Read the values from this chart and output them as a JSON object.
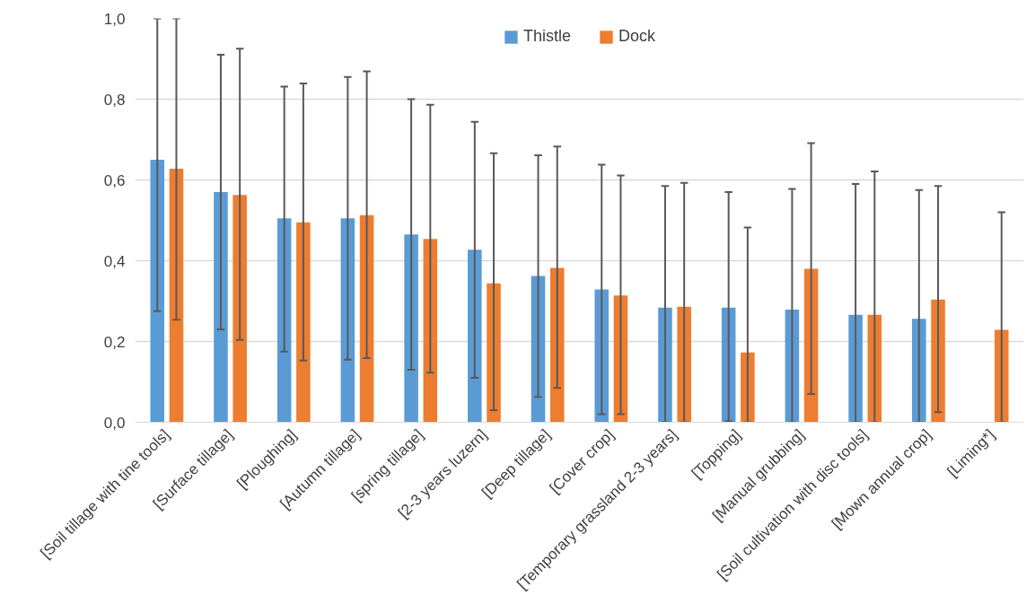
{
  "chart_data": {
    "type": "bar",
    "categories": [
      "[Soil tillage with tine tools]",
      "[Surface tillage]",
      "[Ploughing]",
      "[Autumn tillage]",
      "[spring tillage]",
      "[2-3 years luzern]",
      "[Deep tillage]",
      "[Cover crop]",
      "[Temporary grassland 2-3 years]",
      "[Topping]",
      "[Manual grubbing]",
      "[Soil cultivation with disc tools]",
      "[Mown annual crop]",
      "[Liming*]"
    ],
    "series": [
      {
        "name": "Thistle",
        "color": "#5b9bd5",
        "values": [
          0.65,
          0.57,
          0.505,
          0.505,
          0.465,
          0.427,
          0.362,
          0.329,
          0.284,
          0.284,
          0.279,
          0.266,
          0.256,
          null
        ],
        "errors": [
          [
            0.275,
            1.0
          ],
          [
            0.23,
            0.91
          ],
          [
            0.175,
            0.831
          ],
          [
            0.155,
            0.855
          ],
          [
            0.13,
            0.8
          ],
          [
            0.11,
            0.744
          ],
          [
            0.063,
            0.661
          ],
          [
            0.02,
            0.638
          ],
          [
            0.0,
            0.585
          ],
          [
            0.003,
            0.57
          ],
          [
            0.0,
            0.578
          ],
          [
            0.0,
            0.59
          ],
          [
            0.0,
            0.575
          ],
          null
        ]
      },
      {
        "name": "Dock",
        "color": "#ed7d31",
        "values": [
          0.628,
          0.563,
          0.495,
          0.513,
          0.454,
          0.344,
          0.382,
          0.314,
          0.286,
          0.173,
          0.38,
          0.266,
          0.304,
          0.229
        ],
        "errors": [
          [
            0.254,
            1.0
          ],
          [
            0.204,
            0.925
          ],
          [
            0.153,
            0.839
          ],
          [
            0.159,
            0.869
          ],
          [
            0.123,
            0.786
          ],
          [
            0.03,
            0.666
          ],
          [
            0.085,
            0.683
          ],
          [
            0.02,
            0.611
          ],
          [
            0.0,
            0.593
          ],
          [
            0.0,
            0.482
          ],
          [
            0.07,
            0.691
          ],
          [
            0.0,
            0.621
          ],
          [
            0.025,
            0.585
          ],
          [
            0.0,
            0.52
          ]
        ]
      }
    ],
    "ylim": [
      0,
      1.0
    ],
    "yticks": [
      {
        "value": 0,
        "label": "0,0"
      },
      {
        "value": 0.2,
        "label": "0,2"
      },
      {
        "value": 0.4,
        "label": "0,4"
      },
      {
        "value": 0.6,
        "label": "0,6"
      },
      {
        "value": 0.8,
        "label": "0,8"
      },
      {
        "value": 1.0,
        "label": "1,0"
      }
    ],
    "grid": "y",
    "legend": "top"
  }
}
